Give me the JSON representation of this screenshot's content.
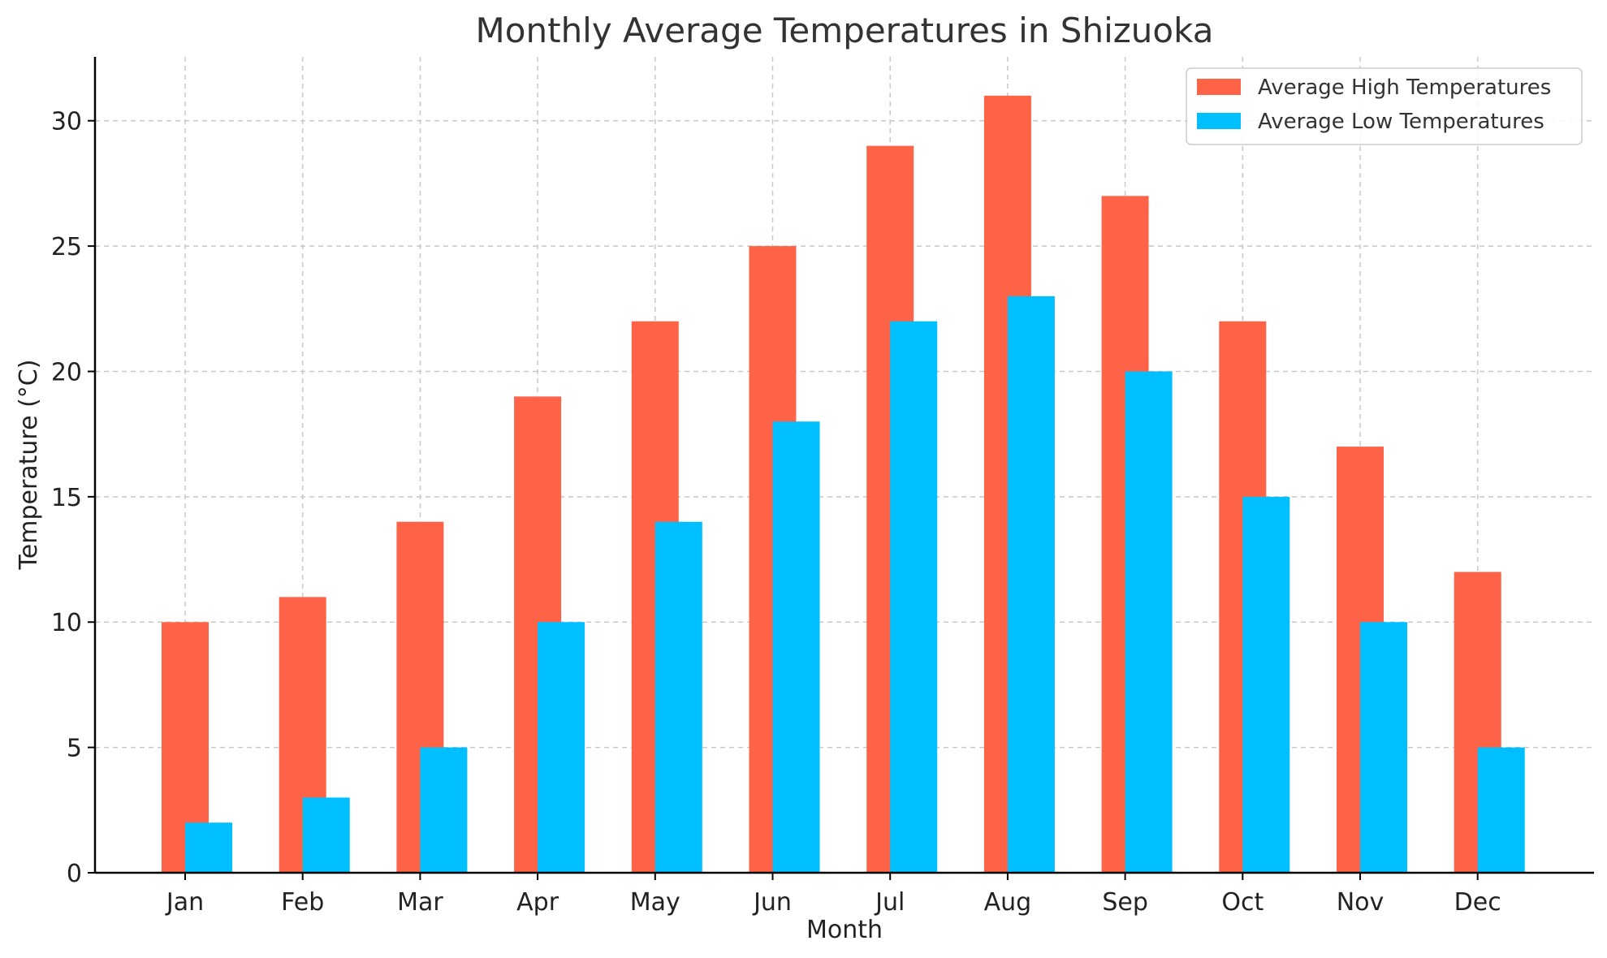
{
  "chart_data": {
    "type": "bar",
    "title": "Monthly Average Temperatures in Shizuoka",
    "xlabel": "Month",
    "ylabel": "Temperature (°C)",
    "categories": [
      "Jan",
      "Feb",
      "Mar",
      "Apr",
      "May",
      "Jun",
      "Jul",
      "Aug",
      "Sep",
      "Oct",
      "Nov",
      "Dec"
    ],
    "series": [
      {
        "name": "Average High Temperatures",
        "color": "#ff6347",
        "values": [
          10,
          11,
          14,
          19,
          22,
          25,
          29,
          31,
          27,
          22,
          17,
          12
        ]
      },
      {
        "name": "Average Low Temperatures",
        "color": "#00bfff",
        "values": [
          2,
          3,
          5,
          10,
          14,
          18,
          22,
          23,
          20,
          15,
          10,
          5
        ]
      }
    ],
    "ylim": [
      0,
      32.55
    ],
    "yticks": [
      0,
      5,
      10,
      15,
      20,
      25,
      30
    ],
    "grid": true,
    "legend_position": "top-right"
  }
}
